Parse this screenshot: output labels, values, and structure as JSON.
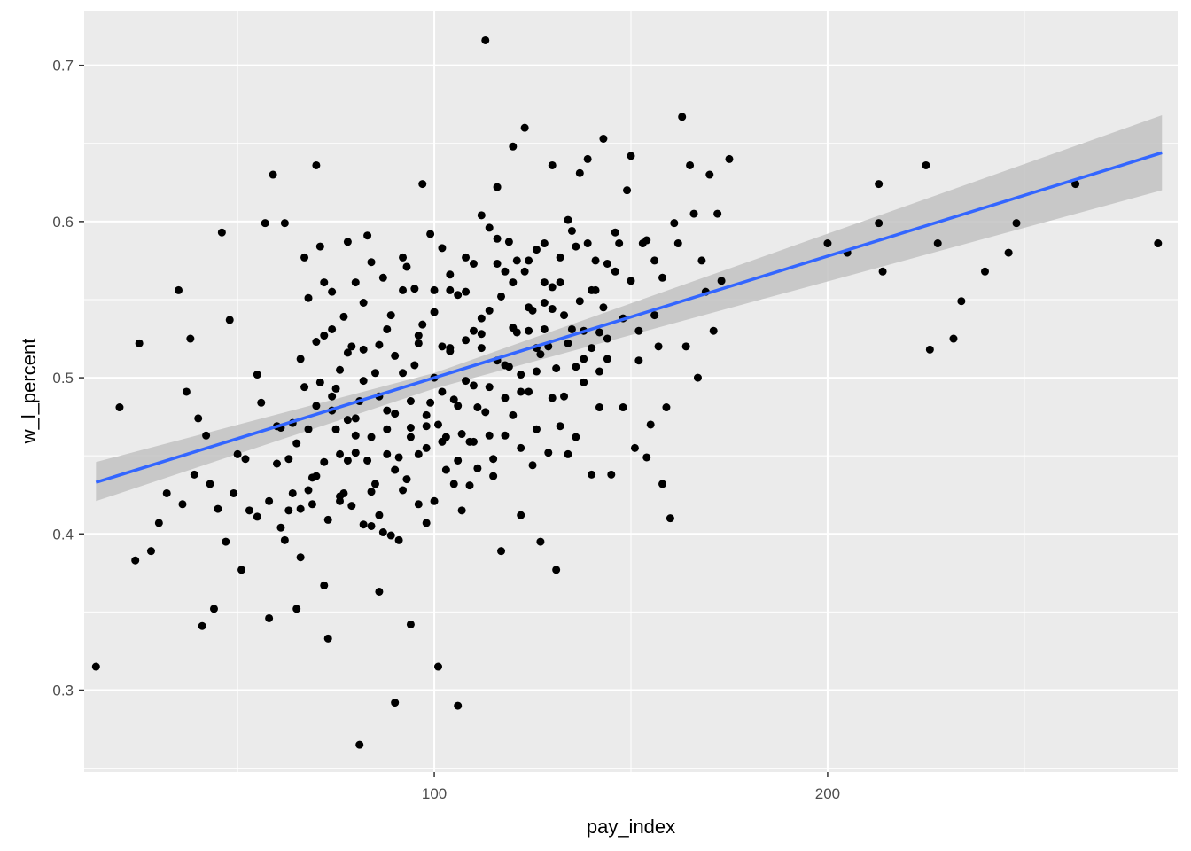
{
  "chart_data": {
    "type": "scatter",
    "title": "",
    "xlabel": "pay_index",
    "ylabel": "w_l_percent",
    "xlim": [
      11,
      289
    ],
    "ylim": [
      0.2475,
      0.735
    ],
    "x_ticks": [
      100,
      200
    ],
    "x_minor_ticks": [
      50,
      150,
      250
    ],
    "y_ticks": [
      0.3,
      0.4,
      0.5,
      0.6,
      0.7
    ],
    "y_minor_ticks": [
      0.25,
      0.35,
      0.45,
      0.55,
      0.65
    ],
    "grid": true,
    "legend": "none",
    "colors": {
      "panel_background": "#ebebeb",
      "grid": "#ffffff",
      "points": "#000000",
      "fit_line": "#3366ff",
      "confidence_band": "#c2c2c2"
    },
    "fit": {
      "method": "lm",
      "line": [
        {
          "x": 14,
          "y": 0.433
        },
        {
          "x": 285,
          "y": 0.644
        }
      ],
      "band_lower": [
        {
          "x": 14,
          "y": 0.421
        },
        {
          "x": 100,
          "y": 0.493
        },
        {
          "x": 285,
          "y": 0.62
        }
      ],
      "band_upper": [
        {
          "x": 14,
          "y": 0.446
        },
        {
          "x": 100,
          "y": 0.503
        },
        {
          "x": 285,
          "y": 0.668
        }
      ]
    },
    "points": [
      [
        14,
        0.315
      ],
      [
        20,
        0.481
      ],
      [
        24,
        0.383
      ],
      [
        25,
        0.522
      ],
      [
        28,
        0.389
      ],
      [
        30,
        0.407
      ],
      [
        32,
        0.426
      ],
      [
        35,
        0.556
      ],
      [
        36,
        0.419
      ],
      [
        37,
        0.491
      ],
      [
        38,
        0.525
      ],
      [
        39,
        0.438
      ],
      [
        40,
        0.474
      ],
      [
        41,
        0.341
      ],
      [
        42,
        0.463
      ],
      [
        43,
        0.432
      ],
      [
        44,
        0.352
      ],
      [
        45,
        0.416
      ],
      [
        46,
        0.593
      ],
      [
        47,
        0.395
      ],
      [
        48,
        0.537
      ],
      [
        49,
        0.426
      ],
      [
        50,
        0.451
      ],
      [
        51,
        0.377
      ],
      [
        52,
        0.448
      ],
      [
        53,
        0.415
      ],
      [
        55,
        0.502
      ],
      [
        56,
        0.484
      ],
      [
        57,
        0.599
      ],
      [
        58,
        0.346
      ],
      [
        59,
        0.63
      ],
      [
        60,
        0.469
      ],
      [
        61,
        0.404
      ],
      [
        62,
        0.599
      ],
      [
        63,
        0.415
      ],
      [
        64,
        0.426
      ],
      [
        65,
        0.352
      ],
      [
        66,
        0.385
      ],
      [
        67,
        0.577
      ],
      [
        68,
        0.551
      ],
      [
        69,
        0.436
      ],
      [
        70,
        0.636
      ],
      [
        71,
        0.584
      ],
      [
        72,
        0.367
      ],
      [
        73,
        0.333
      ],
      [
        74,
        0.555
      ],
      [
        75,
        0.493
      ],
      [
        76,
        0.451
      ],
      [
        77,
        0.426
      ],
      [
        78,
        0.587
      ],
      [
        79,
        0.52
      ],
      [
        80,
        0.474
      ],
      [
        81,
        0.265
      ],
      [
        82,
        0.406
      ],
      [
        83,
        0.591
      ],
      [
        84,
        0.462
      ],
      [
        85,
        0.432
      ],
      [
        86,
        0.363
      ],
      [
        87,
        0.401
      ],
      [
        88,
        0.451
      ],
      [
        89,
        0.54
      ],
      [
        90,
        0.292
      ],
      [
        91,
        0.396
      ],
      [
        92,
        0.577
      ],
      [
        93,
        0.435
      ],
      [
        94,
        0.342
      ],
      [
        95,
        0.557
      ],
      [
        96,
        0.451
      ],
      [
        97,
        0.624
      ],
      [
        98,
        0.407
      ],
      [
        99,
        0.484
      ],
      [
        100,
        0.5
      ],
      [
        101,
        0.315
      ],
      [
        102,
        0.52
      ],
      [
        103,
        0.462
      ],
      [
        104,
        0.556
      ],
      [
        105,
        0.432
      ],
      [
        106,
        0.29
      ],
      [
        107,
        0.415
      ],
      [
        108,
        0.577
      ],
      [
        109,
        0.459
      ],
      [
        110,
        0.53
      ],
      [
        111,
        0.481
      ],
      [
        112,
        0.604
      ],
      [
        113,
        0.716
      ],
      [
        114,
        0.543
      ],
      [
        115,
        0.448
      ],
      [
        116,
        0.622
      ],
      [
        117,
        0.389
      ],
      [
        118,
        0.568
      ],
      [
        119,
        0.507
      ],
      [
        120,
        0.648
      ],
      [
        121,
        0.575
      ],
      [
        122,
        0.455
      ],
      [
        123,
        0.66
      ],
      [
        124,
        0.53
      ],
      [
        125,
        0.444
      ],
      [
        126,
        0.582
      ],
      [
        127,
        0.395
      ],
      [
        128,
        0.561
      ],
      [
        129,
        0.52
      ],
      [
        130,
        0.636
      ],
      [
        131,
        0.377
      ],
      [
        132,
        0.469
      ],
      [
        133,
        0.54
      ],
      [
        134,
        0.451
      ],
      [
        135,
        0.594
      ],
      [
        136,
        0.507
      ],
      [
        137,
        0.631
      ],
      [
        138,
        0.53
      ],
      [
        139,
        0.64
      ],
      [
        140,
        0.438
      ],
      [
        141,
        0.575
      ],
      [
        142,
        0.504
      ],
      [
        143,
        0.653
      ],
      [
        144,
        0.525
      ],
      [
        145,
        0.438
      ],
      [
        146,
        0.568
      ],
      [
        147,
        0.586
      ],
      [
        148,
        0.481
      ],
      [
        149,
        0.62
      ],
      [
        150,
        0.642
      ],
      [
        151,
        0.455
      ],
      [
        152,
        0.53
      ],
      [
        153,
        0.586
      ],
      [
        154,
        0.449
      ],
      [
        155,
        0.47
      ],
      [
        156,
        0.575
      ],
      [
        157,
        0.52
      ],
      [
        158,
        0.432
      ],
      [
        159,
        0.481
      ],
      [
        160,
        0.41
      ],
      [
        161,
        0.599
      ],
      [
        162,
        0.586
      ],
      [
        163,
        0.667
      ],
      [
        164,
        0.52
      ],
      [
        165,
        0.636
      ],
      [
        166,
        0.605
      ],
      [
        167,
        0.5
      ],
      [
        168,
        0.575
      ],
      [
        169,
        0.555
      ],
      [
        170,
        0.63
      ],
      [
        171,
        0.53
      ],
      [
        172,
        0.605
      ],
      [
        173,
        0.562
      ],
      [
        175,
        0.64
      ],
      [
        200,
        0.586
      ],
      [
        205,
        0.58
      ],
      [
        213,
        0.599
      ],
      [
        214,
        0.568
      ],
      [
        213,
        0.624
      ],
      [
        225,
        0.636
      ],
      [
        228,
        0.586
      ],
      [
        226,
        0.518
      ],
      [
        232,
        0.525
      ],
      [
        234,
        0.549
      ],
      [
        240,
        0.568
      ],
      [
        246,
        0.58
      ],
      [
        248,
        0.599
      ],
      [
        263,
        0.624
      ],
      [
        284,
        0.586
      ],
      [
        55,
        0.411
      ],
      [
        58,
        0.421
      ],
      [
        60,
        0.445
      ],
      [
        61,
        0.468
      ],
      [
        62,
        0.396
      ],
      [
        63,
        0.448
      ],
      [
        64,
        0.471
      ],
      [
        65,
        0.458
      ],
      [
        66,
        0.512
      ],
      [
        67,
        0.494
      ],
      [
        68,
        0.428
      ],
      [
        69,
        0.419
      ],
      [
        70,
        0.482
      ],
      [
        71,
        0.497
      ],
      [
        72,
        0.446
      ],
      [
        73,
        0.409
      ],
      [
        74,
        0.531
      ],
      [
        75,
        0.467
      ],
      [
        76,
        0.424
      ],
      [
        77,
        0.539
      ],
      [
        78,
        0.473
      ],
      [
        79,
        0.418
      ],
      [
        80,
        0.452
      ],
      [
        81,
        0.485
      ],
      [
        82,
        0.518
      ],
      [
        83,
        0.447
      ],
      [
        84,
        0.427
      ],
      [
        85,
        0.503
      ],
      [
        86,
        0.412
      ],
      [
        87,
        0.564
      ],
      [
        88,
        0.479
      ],
      [
        89,
        0.399
      ],
      [
        90,
        0.514
      ],
      [
        91,
        0.449
      ],
      [
        92,
        0.428
      ],
      [
        93,
        0.571
      ],
      [
        94,
        0.462
      ],
      [
        95,
        0.508
      ],
      [
        96,
        0.419
      ],
      [
        97,
        0.534
      ],
      [
        98,
        0.455
      ],
      [
        99,
        0.592
      ],
      [
        100,
        0.421
      ],
      [
        101,
        0.47
      ],
      [
        102,
        0.583
      ],
      [
        103,
        0.441
      ],
      [
        104,
        0.517
      ],
      [
        105,
        0.486
      ],
      [
        106,
        0.553
      ],
      [
        107,
        0.464
      ],
      [
        108,
        0.498
      ],
      [
        109,
        0.431
      ],
      [
        110,
        0.573
      ],
      [
        111,
        0.442
      ],
      [
        112,
        0.519
      ],
      [
        113,
        0.478
      ],
      [
        114,
        0.596
      ],
      [
        115,
        0.437
      ],
      [
        116,
        0.511
      ],
      [
        117,
        0.552
      ],
      [
        118,
        0.463
      ],
      [
        119,
        0.587
      ],
      [
        120,
        0.476
      ],
      [
        121,
        0.529
      ],
      [
        122,
        0.412
      ],
      [
        123,
        0.568
      ],
      [
        124,
        0.491
      ],
      [
        125,
        0.543
      ],
      [
        126,
        0.467
      ],
      [
        127,
        0.515
      ],
      [
        128,
        0.586
      ],
      [
        129,
        0.452
      ],
      [
        130,
        0.544
      ],
      [
        131,
        0.506
      ],
      [
        132,
        0.577
      ],
      [
        133,
        0.488
      ],
      [
        134,
        0.601
      ],
      [
        135,
        0.531
      ],
      [
        136,
        0.462
      ],
      [
        137,
        0.549
      ],
      [
        138,
        0.512
      ],
      [
        139,
        0.586
      ],
      [
        140,
        0.519
      ],
      [
        141,
        0.556
      ],
      [
        142,
        0.481
      ],
      [
        143,
        0.545
      ],
      [
        144,
        0.512
      ],
      [
        146,
        0.593
      ],
      [
        148,
        0.538
      ],
      [
        150,
        0.562
      ],
      [
        152,
        0.511
      ],
      [
        154,
        0.588
      ],
      [
        156,
        0.54
      ],
      [
        158,
        0.564
      ],
      [
        70,
        0.523
      ],
      [
        72,
        0.561
      ],
      [
        74,
        0.479
      ],
      [
        76,
        0.505
      ],
      [
        78,
        0.447
      ],
      [
        80,
        0.561
      ],
      [
        82,
        0.498
      ],
      [
        84,
        0.574
      ],
      [
        86,
        0.488
      ],
      [
        88,
        0.531
      ],
      [
        90,
        0.477
      ],
      [
        92,
        0.556
      ],
      [
        94,
        0.485
      ],
      [
        96,
        0.527
      ],
      [
        98,
        0.469
      ],
      [
        100,
        0.542
      ],
      [
        102,
        0.491
      ],
      [
        104,
        0.566
      ],
      [
        106,
        0.482
      ],
      [
        108,
        0.524
      ],
      [
        110,
        0.459
      ],
      [
        112,
        0.538
      ],
      [
        114,
        0.494
      ],
      [
        116,
        0.573
      ],
      [
        118,
        0.487
      ],
      [
        120,
        0.532
      ],
      [
        122,
        0.502
      ],
      [
        124,
        0.575
      ],
      [
        126,
        0.519
      ],
      [
        128,
        0.548
      ],
      [
        130,
        0.487
      ],
      [
        132,
        0.561
      ],
      [
        134,
        0.522
      ],
      [
        136,
        0.584
      ],
      [
        138,
        0.497
      ],
      [
        140,
        0.556
      ],
      [
        142,
        0.529
      ],
      [
        144,
        0.573
      ],
      [
        66,
        0.416
      ],
      [
        68,
        0.467
      ],
      [
        70,
        0.437
      ],
      [
        72,
        0.527
      ],
      [
        74,
        0.488
      ],
      [
        76,
        0.421
      ],
      [
        78,
        0.516
      ],
      [
        80,
        0.463
      ],
      [
        82,
        0.548
      ],
      [
        84,
        0.405
      ],
      [
        86,
        0.521
      ],
      [
        88,
        0.467
      ],
      [
        90,
        0.441
      ],
      [
        92,
        0.503
      ],
      [
        94,
        0.468
      ],
      [
        96,
        0.522
      ],
      [
        98,
        0.476
      ],
      [
        100,
        0.556
      ],
      [
        102,
        0.459
      ],
      [
        104,
        0.519
      ],
      [
        106,
        0.447
      ],
      [
        108,
        0.555
      ],
      [
        110,
        0.495
      ],
      [
        112,
        0.528
      ],
      [
        114,
        0.463
      ],
      [
        116,
        0.589
      ],
      [
        118,
        0.508
      ],
      [
        120,
        0.561
      ],
      [
        122,
        0.491
      ],
      [
        124,
        0.545
      ],
      [
        126,
        0.504
      ],
      [
        128,
        0.531
      ],
      [
        130,
        0.558
      ]
    ]
  }
}
